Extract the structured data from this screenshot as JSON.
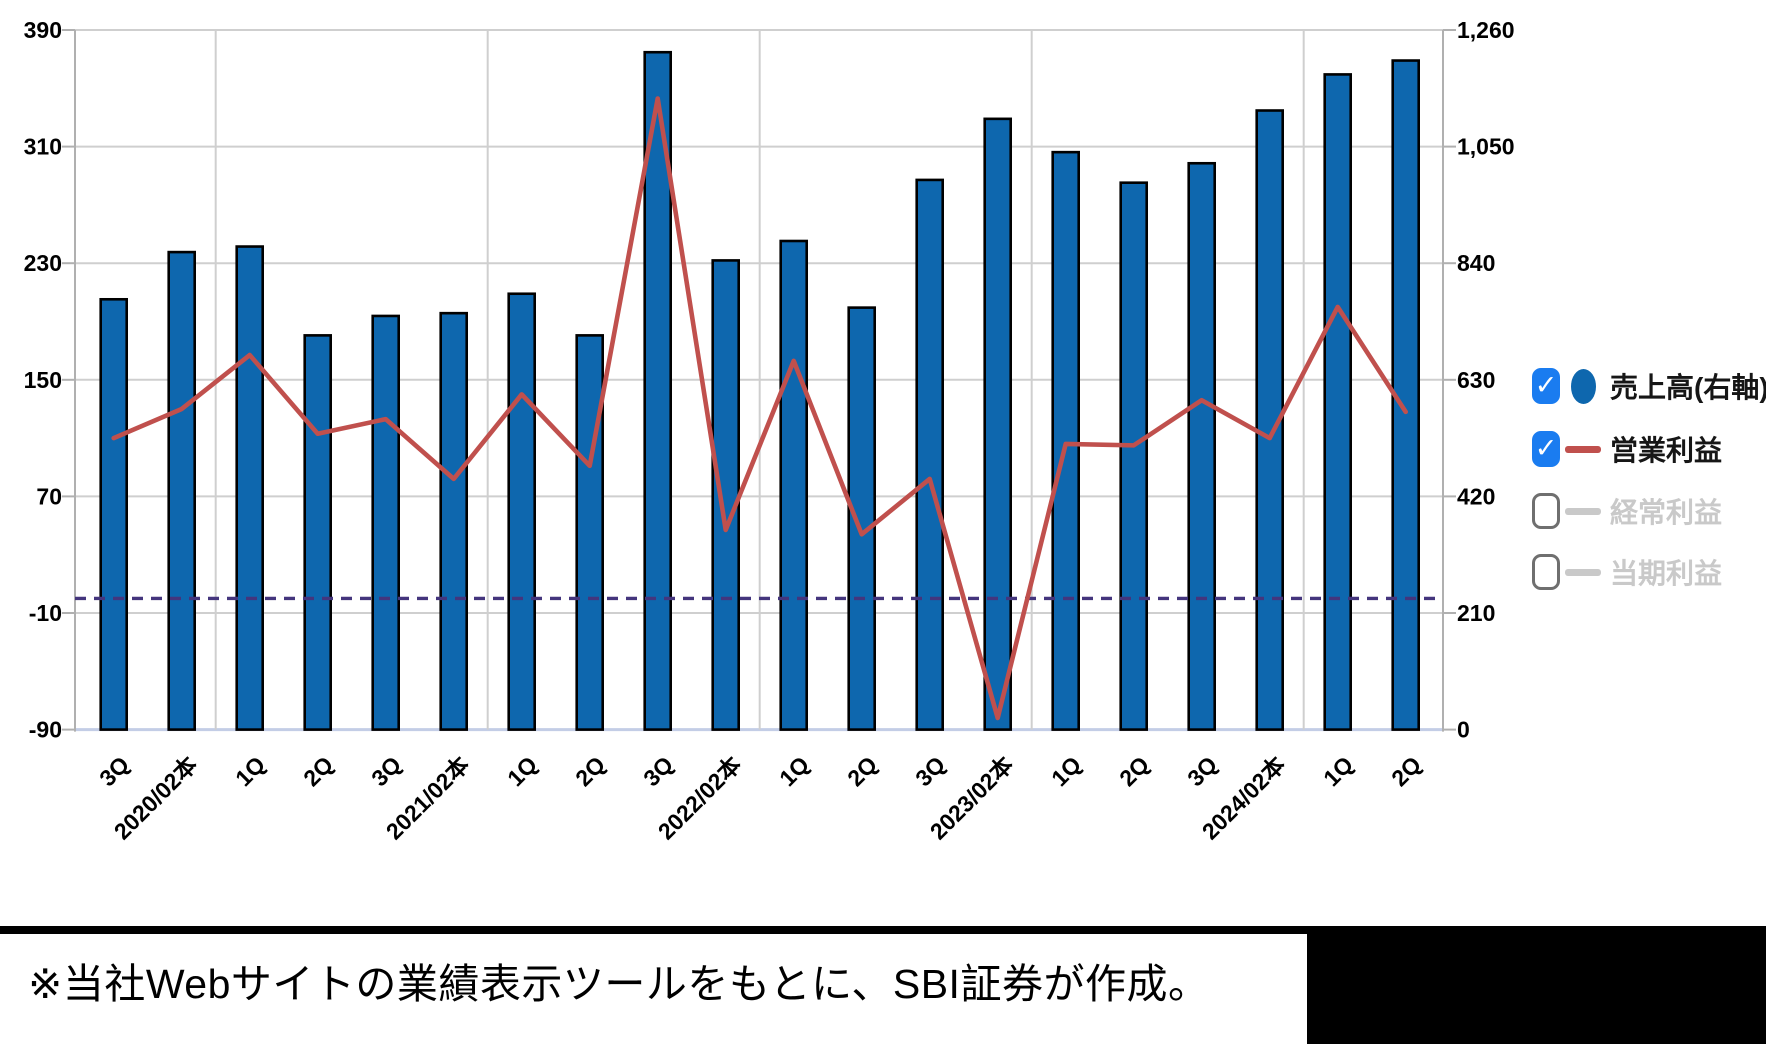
{
  "chart_data": {
    "type": "bar",
    "title": "",
    "xlabel": "",
    "ylabel_left": "",
    "ylabel_right": "",
    "categories": [
      "3Q",
      "2020/02本",
      "1Q",
      "2Q",
      "3Q",
      "2021/02本",
      "1Q",
      "2Q",
      "3Q",
      "2022/02本",
      "1Q",
      "2Q",
      "3Q",
      "2023/02本",
      "1Q",
      "2Q",
      "3Q",
      "2024/02本",
      "1Q",
      "2Q"
    ],
    "series": [
      {
        "name": "売上高(右軸)",
        "type": "bar",
        "axis": "right",
        "color": "#0e67ae",
        "enabled": true,
        "values": [
          775,
          860,
          870,
          710,
          745,
          750,
          785,
          710,
          1220,
          845,
          880,
          760,
          990,
          1100,
          1040,
          985,
          1020,
          1115,
          1180,
          1205
        ]
      },
      {
        "name": "営業利益",
        "type": "line",
        "axis": "left",
        "color": "#c0504d",
        "enabled": true,
        "values": [
          110,
          130,
          167,
          113,
          123,
          82,
          140,
          91,
          343,
          47,
          163,
          44,
          82,
          -82,
          106,
          105,
          136,
          110,
          200,
          128
        ]
      },
      {
        "name": "経常利益",
        "type": "line",
        "axis": "left",
        "color": "#c9c9c9",
        "enabled": false,
        "values": []
      },
      {
        "name": "当期利益",
        "type": "line",
        "axis": "left",
        "color": "#c9c9c9",
        "enabled": false,
        "values": []
      }
    ],
    "left_axis": {
      "tick_labels": [
        "390",
        "310",
        "230",
        "150",
        "70",
        "-10",
        "-90"
      ],
      "tick_values": [
        390,
        310,
        230,
        150,
        70,
        -10,
        -90
      ],
      "min": -90,
      "max": 390
    },
    "right_axis": {
      "tick_labels": [
        "1,260",
        "1,050",
        "840",
        "630",
        "420",
        "210",
        "0"
      ],
      "tick_values": [
        1260,
        1050,
        840,
        630,
        420,
        210,
        0
      ],
      "min": 0,
      "max": 1260
    },
    "zero_line": {
      "axis": "left",
      "value": 0,
      "style": "dashed",
      "color": "#44357d"
    },
    "grid": true,
    "legend_position": "right"
  },
  "legend": {
    "check_glyph": "✓",
    "items": [
      {
        "label": "売上高(右軸)",
        "checked": true,
        "marker": "circle",
        "color": "#0e67ae"
      },
      {
        "label": "営業利益",
        "checked": true,
        "marker": "line",
        "color": "#c0504d"
      },
      {
        "label": "経常利益",
        "checked": false,
        "marker": "line",
        "color": "#c9c9c9"
      },
      {
        "label": "当期利益",
        "checked": false,
        "marker": "line",
        "color": "#c9c9c9"
      }
    ]
  },
  "footer": {
    "note": "※当社Webサイトの業績表示ツールをもとに、SBI証券が作成。"
  },
  "colors": {
    "bar": "#0e67ae",
    "bar_border": "#000000",
    "line": "#c0504d",
    "zero_line": "#44357d",
    "grid": "#cfcfcf",
    "axis": "#b0b0b0",
    "baseline": "#c3cde6",
    "tick_text": "#000000",
    "checkbox_checked": "#1a7cf0",
    "disabled": "#c9c9c9",
    "black": "#000000"
  }
}
